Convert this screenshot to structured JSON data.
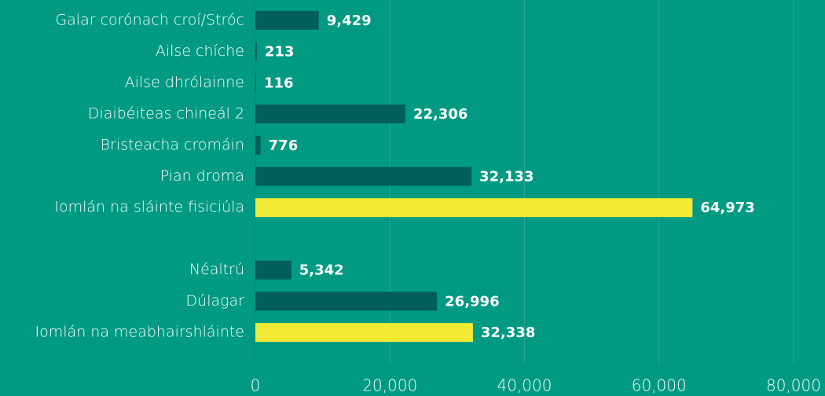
{
  "chart_data": {
    "type": "barh",
    "categories": [
      "Galar corónach croí/Stróc",
      "Ailse chíche",
      "Ailse dhrólainne",
      "Diaibéiteas chineál 2",
      "Bristeacha cromáin",
      "Pian droma",
      "Iomlán na sláinte fisiciúla",
      null,
      "Néaltrú",
      "Dúlagar",
      "Iomlán na meabhairshláinte"
    ],
    "values": [
      9429,
      213,
      116,
      22306,
      776,
      32133,
      64973,
      null,
      5342,
      26996,
      32338
    ],
    "value_labels": [
      "9,429",
      "213",
      "116",
      "22,306",
      "776",
      "32,133",
      "64,973",
      null,
      "5,342",
      "26,996",
      "32,338"
    ],
    "colors": [
      "#005f5b",
      "#005f5b",
      "#005f5b",
      "#005f5b",
      "#005f5b",
      "#005f5b",
      "#f2eb35",
      null,
      "#005f5b",
      "#005f5b",
      "#f2eb35"
    ],
    "xlim": [
      0,
      80000
    ],
    "xticks": [
      0,
      {
        "value": 20000,
        "label": "20,000"
      },
      {
        "value": 40000,
        "label": "40,000"
      },
      {
        "value": 60000,
        "label": "60,000"
      },
      {
        "value": 80000,
        "label": "80,000"
      }
    ],
    "grid": true
  }
}
